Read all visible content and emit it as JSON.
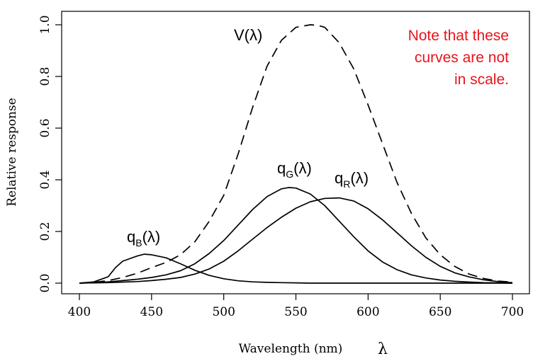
{
  "chart_data": {
    "type": "line",
    "title": "",
    "xlabel": "Wavelength (nm)",
    "xlabel_symbol": "λ",
    "ylabel": "Relative response",
    "xlim": [
      400,
      700
    ],
    "ylim": [
      0.0,
      1.0
    ],
    "xticks": [
      "400",
      "450",
      "500",
      "550",
      "600",
      "650",
      "700"
    ],
    "yticks": [
      "0.0",
      "0.2",
      "0.4",
      "0.6",
      "0.8",
      "1.0"
    ],
    "grid": false,
    "series": [
      {
        "name": "V(λ)",
        "label_main": "V(λ)",
        "style": "dashed",
        "x": [
          400,
          410,
          420,
          430,
          440,
          450,
          460,
          470,
          480,
          490,
          500,
          510,
          520,
          530,
          540,
          550,
          560,
          565,
          570,
          580,
          590,
          600,
          610,
          620,
          630,
          640,
          650,
          660,
          670,
          680,
          690,
          700
        ],
        "y": [
          0.0,
          0.003,
          0.01,
          0.022,
          0.038,
          0.06,
          0.08,
          0.11,
          0.16,
          0.24,
          0.34,
          0.5,
          0.68,
          0.84,
          0.94,
          0.99,
          1.0,
          0.998,
          0.99,
          0.93,
          0.83,
          0.69,
          0.54,
          0.39,
          0.27,
          0.175,
          0.11,
          0.065,
          0.035,
          0.018,
          0.008,
          0.004
        ]
      },
      {
        "name": "qG(λ)",
        "label_main": "q",
        "label_sub": "G",
        "label_suffix": "(λ)",
        "style": "solid",
        "x": [
          400,
          410,
          420,
          430,
          440,
          450,
          460,
          470,
          480,
          490,
          500,
          510,
          520,
          530,
          540,
          545,
          550,
          560,
          570,
          580,
          590,
          600,
          610,
          620,
          630,
          640,
          650,
          660,
          670,
          680,
          690,
          700
        ],
        "y": [
          0.0,
          0.002,
          0.005,
          0.01,
          0.015,
          0.022,
          0.032,
          0.048,
          0.075,
          0.115,
          0.165,
          0.225,
          0.285,
          0.335,
          0.365,
          0.37,
          0.368,
          0.345,
          0.3,
          0.24,
          0.18,
          0.125,
          0.082,
          0.052,
          0.032,
          0.02,
          0.012,
          0.007,
          0.004,
          0.002,
          0.001,
          0.0
        ]
      },
      {
        "name": "qR(λ)",
        "label_main": "q",
        "label_sub": "R",
        "label_suffix": "(λ)",
        "style": "solid",
        "x": [
          400,
          410,
          420,
          430,
          440,
          450,
          460,
          470,
          480,
          490,
          500,
          510,
          520,
          530,
          540,
          550,
          560,
          570,
          580,
          590,
          600,
          610,
          620,
          630,
          640,
          650,
          660,
          670,
          680,
          690,
          700
        ],
        "y": [
          0.0,
          0.001,
          0.002,
          0.004,
          0.006,
          0.01,
          0.015,
          0.022,
          0.035,
          0.055,
          0.085,
          0.125,
          0.17,
          0.215,
          0.255,
          0.29,
          0.315,
          0.328,
          0.33,
          0.318,
          0.288,
          0.245,
          0.195,
          0.145,
          0.1,
          0.065,
          0.04,
          0.024,
          0.013,
          0.006,
          0.002
        ]
      },
      {
        "name": "qB(λ)",
        "label_main": "q",
        "label_sub": "B",
        "label_suffix": "(λ)",
        "style": "solid",
        "x": [
          400,
          410,
          420,
          425,
          430,
          440,
          445,
          450,
          460,
          470,
          480,
          490,
          500,
          510,
          520,
          530,
          540,
          550,
          560,
          570,
          600,
          650,
          700
        ],
        "y": [
          0.0,
          0.005,
          0.025,
          0.06,
          0.085,
          0.105,
          0.112,
          0.11,
          0.098,
          0.075,
          0.05,
          0.03,
          0.017,
          0.009,
          0.005,
          0.003,
          0.002,
          0.001,
          0.0,
          0.0,
          0.0,
          0.0,
          0.0
        ]
      }
    ],
    "annotation": {
      "lines": [
        "Note that these",
        "curves are not",
        "in scale."
      ],
      "color": "#e8141c"
    }
  }
}
